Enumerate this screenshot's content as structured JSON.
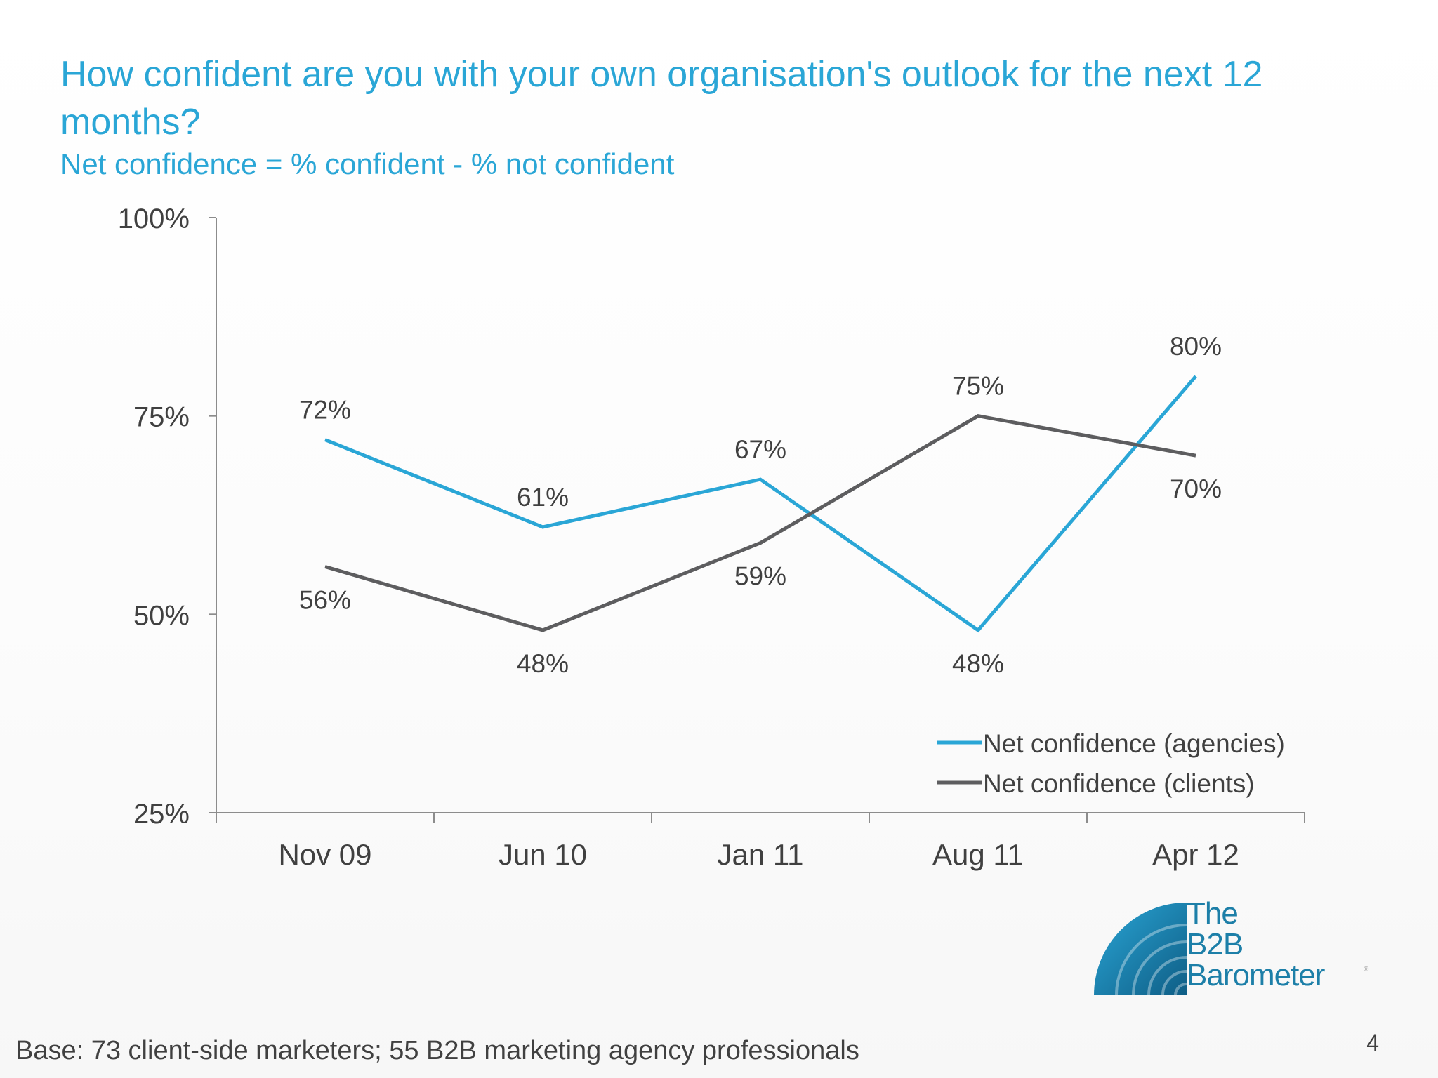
{
  "slide": {
    "title": "How confident are you with your own organisation's outlook for the next 12 months?",
    "subtitle": "Net confidence = % confident - % not confident",
    "footer": "Base: 73 client-side marketers; 55 B2B marketing agency professionals",
    "page_number": "4",
    "logo": {
      "line1": "The",
      "line2": "B2B",
      "line3": "Barometer"
    }
  },
  "colors": {
    "agencies": "#2aa6d6",
    "clients": "#5d5d5f",
    "axis": "#8c8c8c",
    "text": "#404040"
  },
  "chart_data": {
    "type": "line",
    "categories": [
      "Nov 09",
      "Jun 10",
      "Jan 11",
      "Aug 11",
      "Apr 12"
    ],
    "ylim": [
      25,
      100
    ],
    "yticks": [
      100,
      75,
      50,
      25
    ],
    "ytick_labels": [
      "100%",
      "75%",
      "50%",
      "25%"
    ],
    "legend_position": "bottom-right",
    "grid": false,
    "series": [
      {
        "name": "Net confidence (agencies)",
        "color": "#2aa6d6",
        "values": [
          72,
          61,
          67,
          48,
          80
        ],
        "labels": [
          "72%",
          "61%",
          "67%",
          "48%",
          "80%"
        ],
        "label_position": [
          "above",
          "above",
          "above",
          "below",
          "above"
        ]
      },
      {
        "name": "Net confidence (clients)",
        "color": "#5d5d5f",
        "values": [
          56,
          48,
          59,
          75,
          70
        ],
        "labels": [
          "56%",
          "48%",
          "59%",
          "75%",
          "70%"
        ],
        "label_position": [
          "below",
          "below",
          "below",
          "above",
          "below"
        ]
      }
    ]
  }
}
